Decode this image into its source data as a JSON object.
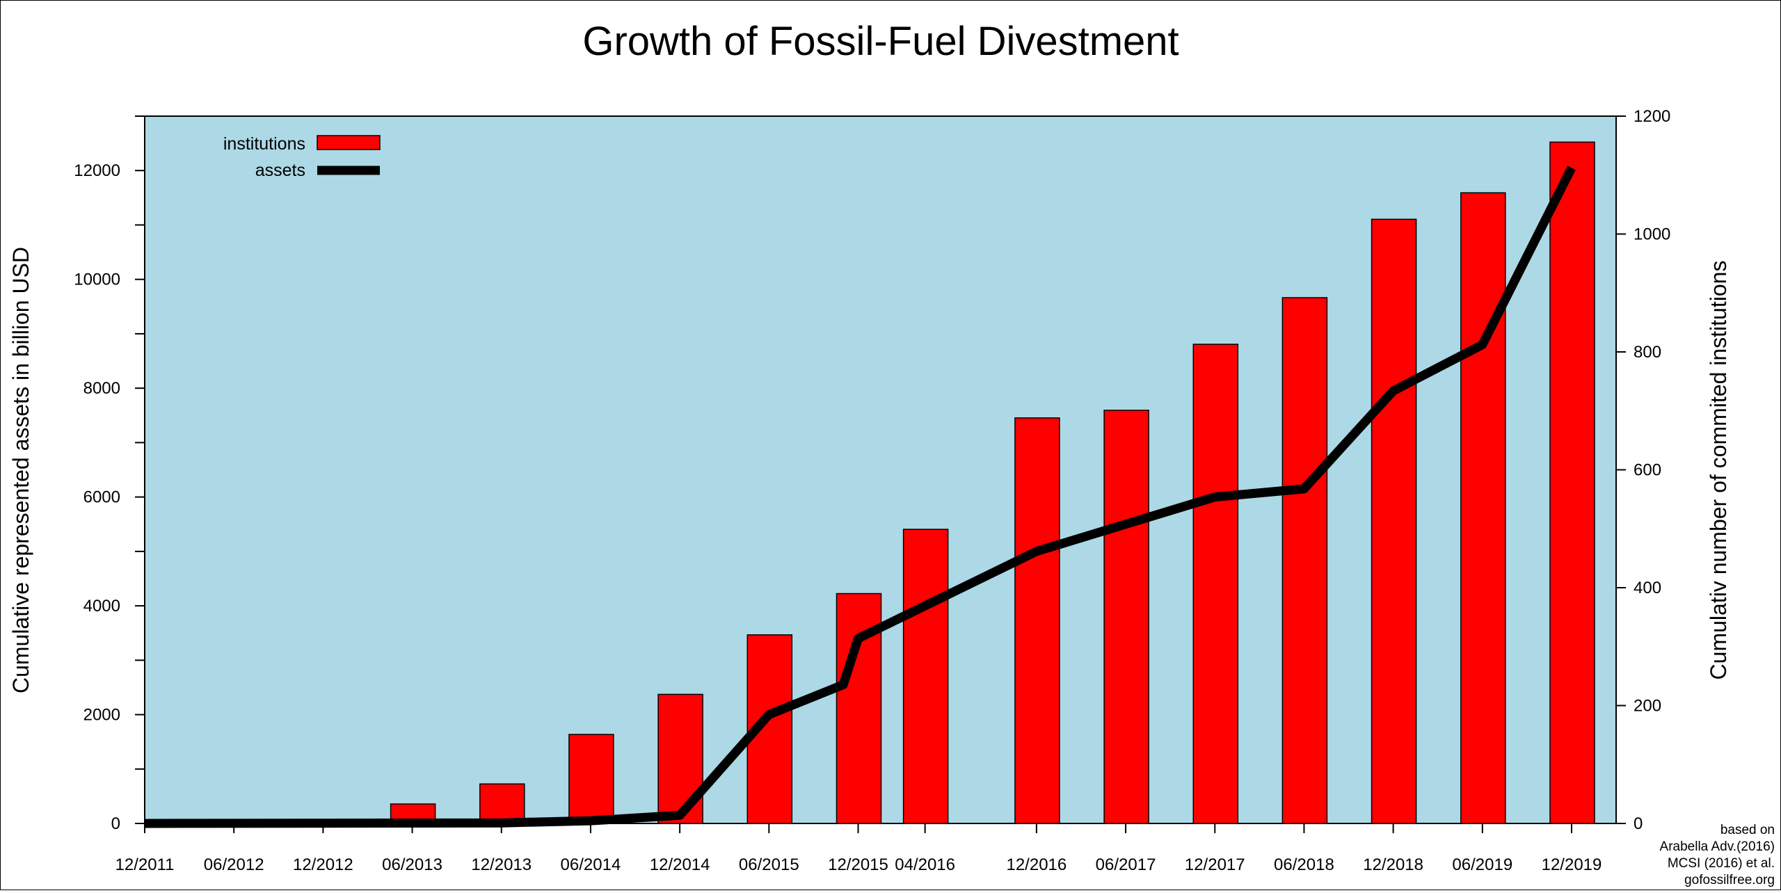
{
  "chart_data": {
    "type": "bar",
    "title": "Growth of Fossil-Fuel Divestment",
    "ylabel_left": "Cumulative represented assets in billion USD",
    "ylabel_right": "Cumulativ number of commited institutions",
    "ylim_left": [
      0,
      13000
    ],
    "ylim_right": [
      0,
      1200
    ],
    "yticks_left": [
      0,
      2000,
      4000,
      6000,
      8000,
      10000,
      12000
    ],
    "yticks_right": [
      0,
      200,
      400,
      600,
      800,
      1000,
      1200
    ],
    "x_dates": [
      {
        "label": "12/2011",
        "t": 0
      },
      {
        "label": "06/2012",
        "t": 6
      },
      {
        "label": "12/2012",
        "t": 12
      },
      {
        "label": "06/2013",
        "t": 18
      },
      {
        "label": "12/2013",
        "t": 24
      },
      {
        "label": "06/2014",
        "t": 30
      },
      {
        "label": "12/2014",
        "t": 36
      },
      {
        "label": "06/2015",
        "t": 42
      },
      {
        "label": "12/2015",
        "t": 48
      },
      {
        "label": "04/2016",
        "t": 52.5
      },
      {
        "label": "12/2016",
        "t": 60
      },
      {
        "label": "06/2017",
        "t": 66
      },
      {
        "label": "12/2017",
        "t": 72
      },
      {
        "label": "06/2018",
        "t": 78
      },
      {
        "label": "12/2018",
        "t": 84
      },
      {
        "label": "06/2019",
        "t": 90
      },
      {
        "label": "12/2019",
        "t": 96
      }
    ],
    "legend": {
      "placement": "top-left",
      "items": [
        "institutions",
        "assets"
      ]
    },
    "series": [
      {
        "name": "institutions",
        "axis": "right",
        "kind": "bar",
        "color": "#ff0000",
        "points": [
          {
            "date": "06/2013",
            "value": 33
          },
          {
            "date": "12/2013",
            "value": 67
          },
          {
            "date": "06/2014",
            "value": 151
          },
          {
            "date": "12/2014",
            "value": 219
          },
          {
            "date": "06/2015",
            "value": 320
          },
          {
            "date": "12/2015",
            "value": 390
          },
          {
            "date": "04/2016",
            "value": 499
          },
          {
            "date": "12/2016",
            "value": 688
          },
          {
            "date": "06/2017",
            "value": 701
          },
          {
            "date": "12/2017",
            "value": 813
          },
          {
            "date": "06/2018",
            "value": 892
          },
          {
            "date": "12/2018",
            "value": 1025
          },
          {
            "date": "06/2019",
            "value": 1070
          },
          {
            "date": "12/2019",
            "value": 1156
          }
        ]
      },
      {
        "name": "assets",
        "axis": "left",
        "kind": "line",
        "color": "#000000",
        "points": [
          {
            "t": 0,
            "value": 0
          },
          {
            "t": 12,
            "value": 5
          },
          {
            "t": 24,
            "value": 10
          },
          {
            "t": 30,
            "value": 50
          },
          {
            "t": 36,
            "value": 150
          },
          {
            "t": 42,
            "value": 2000
          },
          {
            "t": 47,
            "value": 2550
          },
          {
            "t": 48,
            "value": 3400
          },
          {
            "t": 52.5,
            "value": 4000
          },
          {
            "t": 60,
            "value": 5000
          },
          {
            "t": 66,
            "value": 5500
          },
          {
            "t": 72,
            "value": 6000
          },
          {
            "t": 78,
            "value": 6150
          },
          {
            "t": 84,
            "value": 7950
          },
          {
            "t": 90,
            "value": 8800
          },
          {
            "t": 96,
            "value": 12050
          }
        ]
      }
    ],
    "background_color": "#add8e6",
    "grid": false
  },
  "credit": {
    "lines": [
      "based on",
      "Arabella Adv.(2016)",
      "MCSI (2016) et al.",
      "gofossilfree.org"
    ]
  }
}
